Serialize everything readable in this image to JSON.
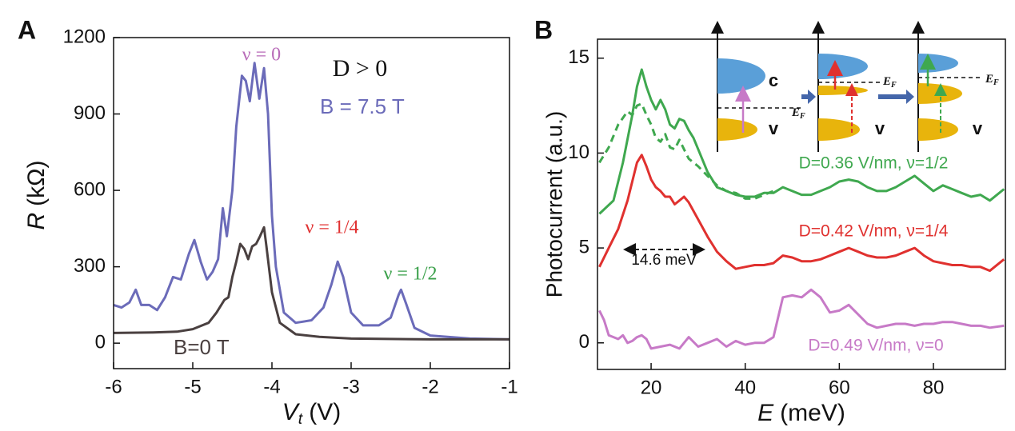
{
  "chart_data": [
    {
      "type": "line",
      "panel": "A",
      "x_label": {
        "symbol": "V",
        "subscript": "t",
        "unit": "(V)"
      },
      "y_label": {
        "symbol": "R",
        "unit": "(kΩ)"
      },
      "xlim": [
        -6,
        -1
      ],
      "ylim": [
        -100,
        1200
      ],
      "xticks": [
        -6,
        -5,
        -4,
        -3,
        -2,
        -1
      ],
      "yticks": [
        0,
        300,
        600,
        900,
        1200
      ],
      "series": [
        {
          "name": "B = 7.5 T",
          "color": "#6b6bb9",
          "x": [
            -6.0,
            -5.9,
            -5.8,
            -5.72,
            -5.65,
            -5.55,
            -5.45,
            -5.35,
            -5.25,
            -5.15,
            -5.05,
            -4.98,
            -4.9,
            -4.82,
            -4.75,
            -4.68,
            -4.62,
            -4.57,
            -4.5,
            -4.45,
            -4.38,
            -4.33,
            -4.28,
            -4.22,
            -4.16,
            -4.1,
            -4.05,
            -4.0,
            -3.95,
            -3.85,
            -3.7,
            -3.5,
            -3.35,
            -3.25,
            -3.17,
            -3.1,
            -3.0,
            -2.85,
            -2.65,
            -2.5,
            -2.4,
            -2.37,
            -2.3,
            -2.2,
            -2.0,
            -1.5,
            -1.0
          ],
          "values": [
            150,
            140,
            160,
            210,
            150,
            150,
            130,
            180,
            260,
            250,
            350,
            405,
            320,
            250,
            280,
            330,
            530,
            420,
            600,
            850,
            1050,
            1030,
            950,
            1100,
            960,
            1080,
            900,
            500,
            300,
            120,
            80,
            90,
            140,
            230,
            320,
            260,
            120,
            70,
            70,
            100,
            190,
            210,
            150,
            60,
            30,
            18,
            15
          ]
        },
        {
          "name": "B=0 T",
          "color": "#4a4040",
          "x": [
            -6.0,
            -5.5,
            -5.2,
            -5.0,
            -4.8,
            -4.7,
            -4.6,
            -4.55,
            -4.5,
            -4.45,
            -4.4,
            -4.35,
            -4.3,
            -4.25,
            -4.2,
            -4.15,
            -4.1,
            -4.07,
            -4.0,
            -3.9,
            -3.7,
            -3.4,
            -3.0,
            -2.0,
            -1.0
          ],
          "values": [
            40,
            42,
            45,
            55,
            80,
            120,
            170,
            180,
            260,
            320,
            390,
            370,
            330,
            380,
            390,
            420,
            455,
            380,
            200,
            80,
            35,
            25,
            18,
            15,
            15
          ]
        }
      ],
      "annotations": [
        {
          "text": "ν = 0",
          "color": "#b86bb8"
        },
        {
          "text": "D > 0",
          "color": "#111111"
        },
        {
          "text": "ν = 1/4",
          "color": "#e03030"
        },
        {
          "text": "ν = 1/2",
          "color": "#3aa04a"
        }
      ]
    },
    {
      "type": "line",
      "panel": "B",
      "x_label": {
        "symbol": "E",
        "unit": "(meV)"
      },
      "y_label": "Photocurrent (a.u.)",
      "xlim": [
        8.6,
        95.3
      ],
      "ylim": [
        -1.4,
        16
      ],
      "xticks": [
        20,
        40,
        60,
        80
      ],
      "yticks": [
        0,
        5,
        10,
        15
      ],
      "series": [
        {
          "name": "D=0.36 V/nm, ν=1/2",
          "color": "#3fa84f",
          "x": [
            9,
            12,
            14,
            16,
            17,
            18,
            19,
            20,
            21,
            22,
            23,
            24,
            25,
            26,
            27,
            28,
            29,
            30,
            32,
            34,
            36,
            38,
            40,
            42,
            44,
            46,
            48,
            50,
            52,
            54,
            56,
            58,
            60,
            62,
            64,
            66,
            68,
            70,
            72,
            74,
            76,
            78,
            80,
            82,
            84,
            86,
            88,
            90,
            92,
            95
          ],
          "values": [
            6.8,
            7.5,
            9.5,
            12,
            13.5,
            14.4,
            13.5,
            12.8,
            12.3,
            12.8,
            12.3,
            11.5,
            11.3,
            11.8,
            11.7,
            11.2,
            10.8,
            10.2,
            9.0,
            8.2,
            8.0,
            7.8,
            7.7,
            7.7,
            7.9,
            7.9,
            8.2,
            8.0,
            7.8,
            7.8,
            8.0,
            8.2,
            8.5,
            8.6,
            8.5,
            8.2,
            8.0,
            8.0,
            8.2,
            8.5,
            8.8,
            8.4,
            8.0,
            8.3,
            8.1,
            7.9,
            7.7,
            7.8,
            7.5,
            8.1
          ]
        },
        {
          "color": "#3fa84f",
          "dashed": true,
          "x": [
            9,
            11,
            13,
            15,
            16,
            17,
            18,
            19,
            20,
            21,
            22,
            23,
            24,
            25,
            26,
            27,
            28,
            30,
            32,
            34,
            36,
            38,
            40,
            42,
            44,
            46
          ],
          "values": [
            9.5,
            10.3,
            11.5,
            12.2,
            12.0,
            12.5,
            12.6,
            12.0,
            11.5,
            10.8,
            10.6,
            11.0,
            10.3,
            10.2,
            10.7,
            10.2,
            9.7,
            9.3,
            8.8,
            8.3,
            8.0,
            7.9,
            7.6,
            7.6,
            7.8,
            8.0
          ]
        },
        {
          "name": "D=0.42 V/nm, ν=1/4",
          "color": "#e0312f",
          "x": [
            9,
            11,
            13,
            15,
            16,
            17,
            18,
            19,
            20,
            21,
            22,
            23,
            24,
            25,
            26,
            27,
            28,
            30,
            32,
            34,
            36,
            38,
            40,
            42,
            44,
            46,
            48,
            50,
            52,
            54,
            56,
            58,
            60,
            62,
            64,
            66,
            68,
            70,
            72,
            74,
            76,
            78,
            80,
            82,
            84,
            86,
            88,
            90,
            92,
            95
          ],
          "values": [
            4.0,
            5.0,
            6.0,
            7.5,
            8.5,
            9.5,
            9.9,
            9.3,
            8.6,
            8.2,
            8.0,
            7.7,
            7.7,
            7.3,
            7.5,
            7.7,
            7.4,
            6.5,
            5.6,
            4.8,
            4.3,
            3.9,
            4.0,
            4.1,
            4.1,
            4.2,
            4.6,
            4.5,
            4.3,
            4.3,
            4.4,
            4.6,
            4.8,
            5.0,
            4.8,
            4.6,
            4.5,
            4.5,
            4.6,
            4.8,
            5.0,
            4.6,
            4.3,
            4.2,
            4.1,
            4.1,
            4.0,
            4.0,
            3.8,
            4.4
          ]
        },
        {
          "name": "D=0.49 V/nm, ν=0",
          "color": "#c77ac7",
          "x": [
            9,
            10,
            11,
            12,
            13,
            14,
            15,
            16,
            17,
            18,
            19,
            20,
            22,
            24,
            26,
            28,
            30,
            32,
            34,
            36,
            38,
            40,
            42,
            44,
            46,
            48,
            50,
            52,
            54,
            56,
            58,
            60,
            62,
            64,
            66,
            68,
            70,
            72,
            74,
            76,
            78,
            80,
            82,
            84,
            86,
            88,
            90,
            92,
            95
          ],
          "values": [
            1.7,
            1.2,
            0.4,
            0.3,
            0.2,
            0.4,
            0.0,
            0.1,
            0.3,
            0.4,
            0.2,
            -0.3,
            -0.2,
            -0.1,
            -0.3,
            0.3,
            -0.2,
            0.0,
            0.2,
            -0.2,
            0.1,
            -0.1,
            0.0,
            0.0,
            0.3,
            2.4,
            2.5,
            2.4,
            2.8,
            2.4,
            1.6,
            1.7,
            2.0,
            1.5,
            1.0,
            0.8,
            0.9,
            1.0,
            1.0,
            0.9,
            1.0,
            1.0,
            1.1,
            1.1,
            1.0,
            0.9,
            0.9,
            0.8,
            0.9
          ]
        }
      ],
      "annotations": [
        {
          "text": "14.6 meV",
          "color": "#111111"
        }
      ],
      "inset": {
        "labels": [
          "c",
          "v",
          "v",
          "v"
        ],
        "fermi": {
          "symbol": "E",
          "subscript": "F"
        }
      }
    }
  ]
}
